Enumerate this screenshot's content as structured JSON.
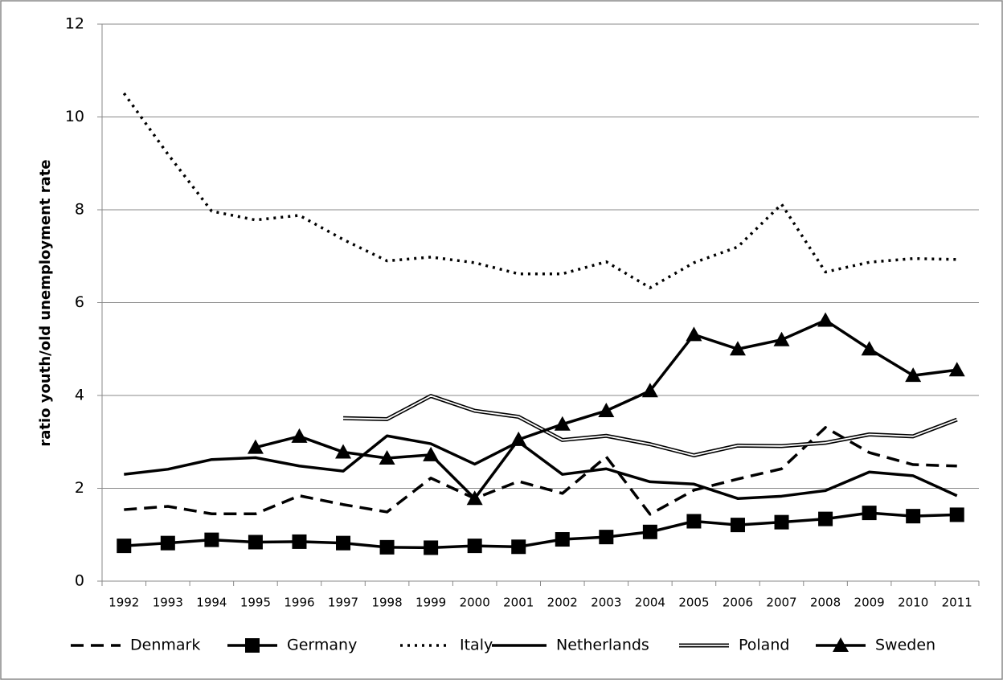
{
  "chart_data": {
    "type": "line",
    "y_label": "ratio youth/old unemployment rate",
    "categories": [
      "1992",
      "1993",
      "1994",
      "1995",
      "1996",
      "1997",
      "1998",
      "1999",
      "2000",
      "2001",
      "2002",
      "2003",
      "2004",
      "2005",
      "2006",
      "2007",
      "2008",
      "2009",
      "2010",
      "2011"
    ],
    "ylim": [
      0,
      12
    ],
    "yticks": [
      0,
      2,
      4,
      6,
      8,
      10,
      12
    ],
    "grid": true,
    "legend": "bottom",
    "series": [
      {
        "name": "Denmark",
        "color": "#000000",
        "line_style": "dashed",
        "marker": "none",
        "values": [
          1.54,
          1.61,
          1.45,
          1.45,
          1.84,
          1.65,
          1.49,
          2.22,
          1.78,
          2.15,
          1.89,
          2.68,
          1.44,
          1.96,
          2.2,
          2.42,
          3.31,
          2.77,
          2.51,
          2.48
        ]
      },
      {
        "name": "Germany",
        "color": "#000000",
        "line_style": "solid",
        "marker": "square",
        "values": [
          0.76,
          0.82,
          0.89,
          0.84,
          0.85,
          0.82,
          0.73,
          0.72,
          0.76,
          0.74,
          0.9,
          0.95,
          1.06,
          1.29,
          1.21,
          1.27,
          1.34,
          1.47,
          1.4,
          1.43
        ]
      },
      {
        "name": "Italy",
        "color": "#000000",
        "line_style": "dotted",
        "marker": "none",
        "values": [
          10.51,
          9.2,
          7.97,
          7.78,
          7.88,
          7.36,
          6.9,
          6.98,
          6.86,
          6.62,
          6.62,
          6.88,
          6.32,
          6.86,
          7.2,
          8.12,
          6.66,
          6.87,
          6.95,
          6.93
        ]
      },
      {
        "name": "Netherlands",
        "color": "#000000",
        "line_style": "solid",
        "marker": "none",
        "values": [
          2.3,
          2.41,
          2.62,
          2.66,
          2.48,
          2.37,
          3.13,
          2.96,
          2.52,
          3.0,
          2.3,
          2.42,
          2.14,
          2.09,
          1.78,
          1.83,
          1.95,
          2.35,
          2.27,
          1.84
        ]
      },
      {
        "name": "Poland",
        "color": "#000000",
        "line_style": "double",
        "marker": "none",
        "values": [
          null,
          null,
          null,
          null,
          null,
          3.51,
          3.49,
          3.99,
          3.67,
          3.54,
          3.04,
          3.13,
          2.95,
          2.71,
          2.92,
          2.91,
          2.98,
          3.16,
          3.12,
          3.48
        ]
      },
      {
        "name": "Sweden",
        "color": "#000000",
        "line_style": "solid",
        "marker": "triangle",
        "values": [
          null,
          null,
          null,
          2.88,
          3.12,
          2.78,
          2.65,
          2.72,
          1.78,
          3.05,
          3.38,
          3.67,
          4.1,
          5.31,
          5.0,
          5.2,
          5.62,
          5.0,
          4.43,
          4.55
        ]
      }
    ]
  }
}
